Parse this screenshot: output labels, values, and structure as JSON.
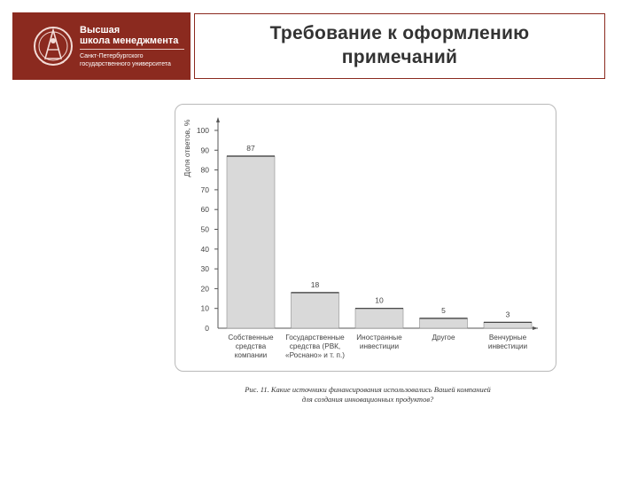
{
  "logo": {
    "line1": "Высшая",
    "line2": "школа менеджмента",
    "line3": "Санкт-Петербургского",
    "line4": "государственного университета",
    "colors": {
      "background": "#8b2a1f",
      "text": "#ffffff"
    }
  },
  "slide": {
    "title_line1": "Требование к оформлению",
    "title_line2": "примечаний"
  },
  "chart_data": {
    "type": "bar",
    "ylabel": "Доля ответов, %",
    "ylim": [
      0,
      100
    ],
    "yticks": [
      0,
      10,
      20,
      30,
      40,
      50,
      60,
      70,
      80,
      90,
      100
    ],
    "categories": [
      [
        "Собственные",
        "средства",
        "компании"
      ],
      [
        "Государственные",
        "средства (РВК,",
        "«Роснано» и т. п.)"
      ],
      [
        "Иностранные",
        "инвестиции"
      ],
      [
        "Другое"
      ],
      [
        "Венчурные",
        "инвестиции"
      ]
    ],
    "values": [
      87,
      18,
      10,
      5,
      3
    ],
    "bar_color": "#d9d9d9",
    "grid": false
  },
  "caption": {
    "line1": "Рис. 11. Какие источники финансирования использовались Вашей компанией",
    "line2": "для создания инновационных продуктов?"
  }
}
